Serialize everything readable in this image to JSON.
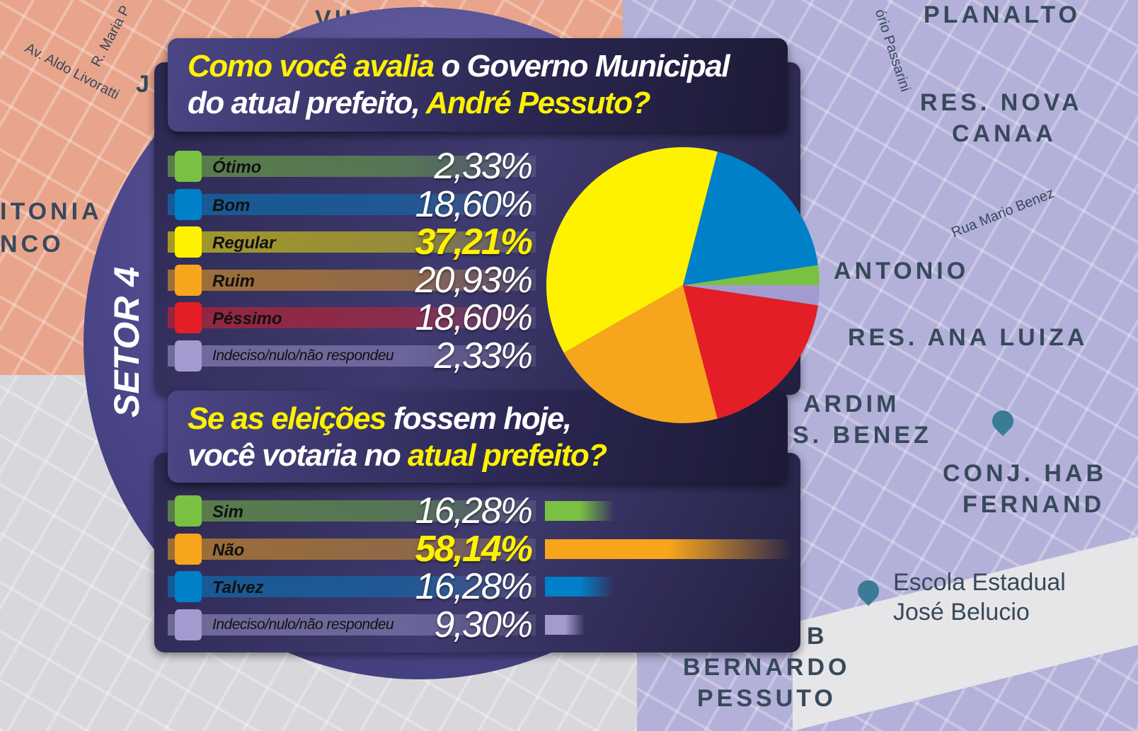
{
  "map_labels": [
    "VILA NADA",
    "PLANALTO",
    "RES. NOVA",
    "CANAA",
    "Rua Mario Benez",
    "ANTONIO",
    "RES. ANA LUIZA",
    "ARDIM",
    "S. BENEZ",
    "CONJ. HAB",
    "FERNAND",
    "Escola Estadual",
    "José Belucio",
    "B",
    "BERNARDO",
    "PESSUTO",
    "ITONIA",
    "NCO",
    "Av. Aldo Livoratti",
    "R. Maria P",
    "J",
    "ório Passarini"
  ],
  "sector_label": "SETOR 4",
  "question1": {
    "part1": "Como você avalia",
    "part2": " o Governo Municipal",
    "part3": "do atual prefeito, ",
    "part4": "André Pessuto?"
  },
  "question2": {
    "part1": "Se as eleições",
    "part2": " fossem hoje,",
    "part3": "você votaria no ",
    "part4": "atual prefeito?"
  },
  "chart_data": [
    {
      "type": "pie",
      "title": "Como você avalia o Governo Municipal do atual prefeito, André Pessuto?",
      "categories": [
        "Ótimo",
        "Bom",
        "Regular",
        "Ruim",
        "Péssimo",
        "Indeciso/nulo/não respondeu"
      ],
      "values": [
        2.33,
        18.6,
        37.21,
        20.93,
        18.6,
        2.33
      ],
      "labels": [
        "2,33%",
        "18,60%",
        "37,21%",
        "20,93%",
        "18,60%",
        "2,33%"
      ],
      "colors": [
        "#7ac143",
        "#0080c8",
        "#fff200",
        "#f7a51c",
        "#e41e26",
        "#a39bd0"
      ],
      "highlight": "Regular"
    },
    {
      "type": "bar",
      "title": "Se as eleições fossem hoje, você votaria no atual prefeito?",
      "categories": [
        "Sim",
        "Não",
        "Talvez",
        "Indeciso/nulo/não respondeu"
      ],
      "values": [
        16.28,
        58.14,
        16.28,
        9.3
      ],
      "labels": [
        "16,28%",
        "58,14%",
        "16,28%",
        "9,30%"
      ],
      "colors": [
        "#7ac143",
        "#f7a51c",
        "#0080c8",
        "#a39bd0"
      ],
      "highlight": "Não"
    }
  ]
}
